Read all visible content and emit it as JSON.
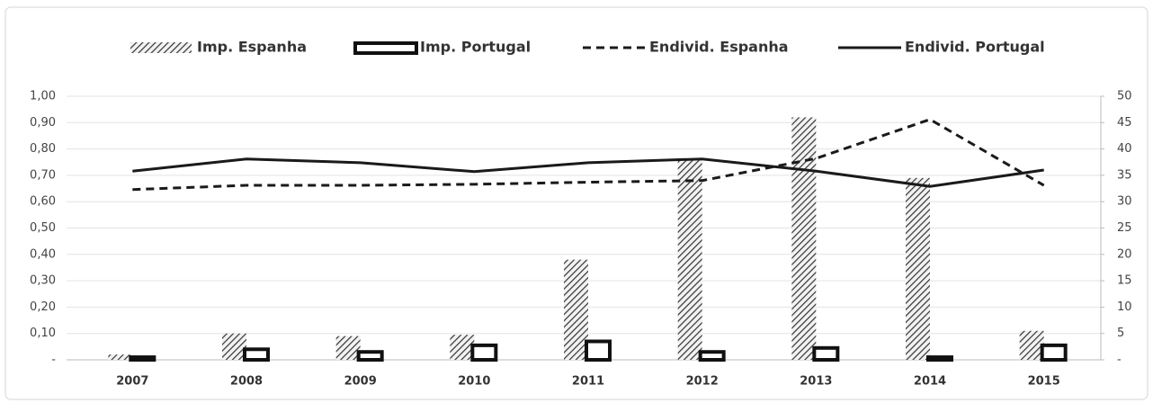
{
  "chart_data": {
    "type": "bar",
    "categories": [
      "2007",
      "2008",
      "2009",
      "2010",
      "2011",
      "2012",
      "2013",
      "2014",
      "2015"
    ],
    "series": [
      {
        "name": "Imp. Espanha",
        "type": "bar",
        "fill": "hatch",
        "color": "#333333",
        "values": [
          0.02,
          0.1,
          0.09,
          0.095,
          0.38,
          0.76,
          0.92,
          0.69,
          0.11
        ]
      },
      {
        "name": "Imp. Portugal",
        "type": "bar",
        "fill": "outline",
        "color": "#111111",
        "values": [
          0.01,
          0.04,
          0.03,
          0.055,
          0.07,
          0.03,
          0.045,
          0.01,
          0.055
        ]
      },
      {
        "name": "Endivid. Espanha",
        "type": "line",
        "line_style": "dashed",
        "color": "#1a1a1a",
        "axis": "y2",
        "values": [
          32.3,
          33.1,
          33.1,
          33.3,
          33.7,
          34.0,
          38.2,
          45.6,
          33.1
        ]
      },
      {
        "name": "Endivid. Portugal",
        "type": "line",
        "line_style": "solid",
        "color": "#1a1a1a",
        "axis": "y2",
        "values": [
          35.8,
          38.1,
          37.4,
          35.7,
          37.4,
          38.1,
          35.8,
          32.9,
          36.0
        ]
      }
    ],
    "ylim": [
      0,
      1
    ],
    "yticks": [
      {
        "value": 0,
        "label": "-"
      },
      {
        "value": 0.1,
        "label": "0,10"
      },
      {
        "value": 0.2,
        "label": "0,20"
      },
      {
        "value": 0.3,
        "label": "0,30"
      },
      {
        "value": 0.4,
        "label": "0,40"
      },
      {
        "value": 0.5,
        "label": "0,50"
      },
      {
        "value": 0.6,
        "label": "0,60"
      },
      {
        "value": 0.7,
        "label": "0,70"
      },
      {
        "value": 0.8,
        "label": "0,80"
      },
      {
        "value": 0.9,
        "label": "0,90"
      },
      {
        "value": 1,
        "label": "1,00"
      }
    ],
    "y2lim": [
      0,
      50
    ],
    "y2ticks": [
      {
        "value": 0,
        "label": "-"
      },
      5,
      10,
      15,
      20,
      25,
      30,
      35,
      40,
      45,
      50
    ],
    "grid": true,
    "legend": "top"
  }
}
